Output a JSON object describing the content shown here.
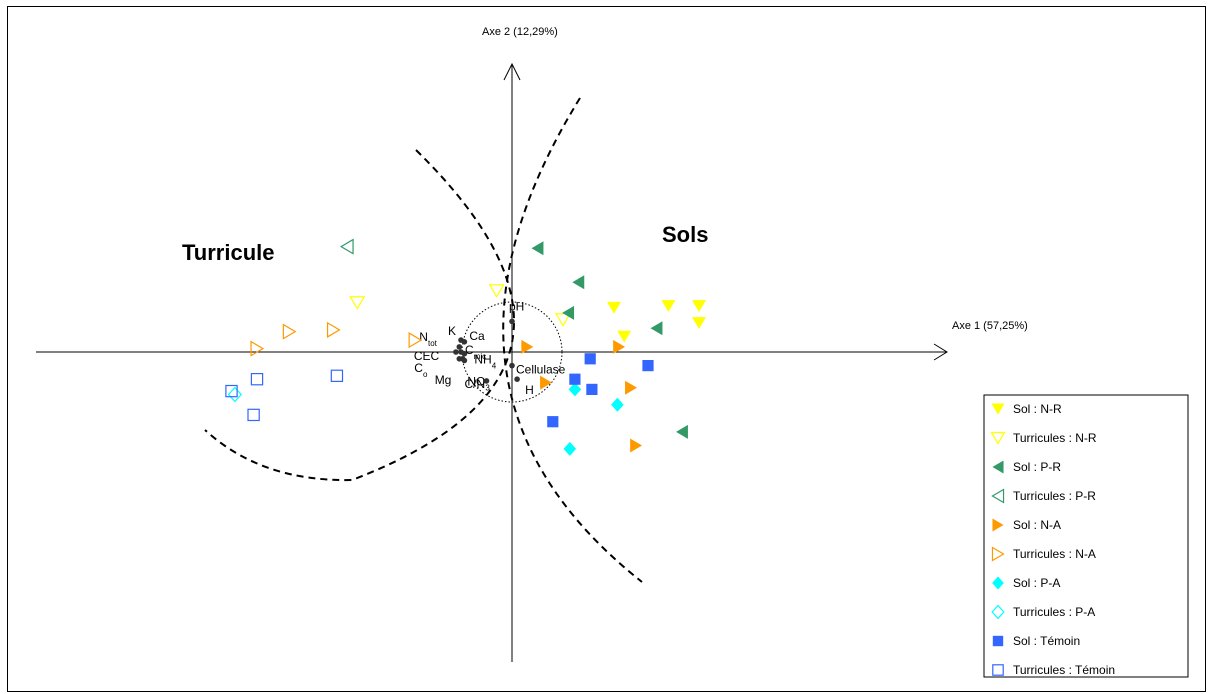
{
  "chart_data": {
    "type": "scatter",
    "xlabel": "Axe 1 (57,25%)",
    "ylabel": "Axe 2 (12,29%)",
    "xlim": [
      -3.0,
      2.75
    ],
    "ylim": [
      -1.9,
      1.65
    ],
    "groups": [
      {
        "label": "Turricule"
      },
      {
        "label": "Sols"
      }
    ],
    "variables": [
      {
        "name": "pH",
        "x": 0.0,
        "y": 0.18
      },
      {
        "name": "K",
        "x": -0.3,
        "y": 0.07
      },
      {
        "name": "Ca",
        "x": -0.28,
        "y": 0.06
      },
      {
        "name": "Ntot",
        "base": "N",
        "sub": "tot",
        "x": -0.31,
        "y": 0.03
      },
      {
        "name": "Cmic",
        "base": "C",
        "sub": "mic",
        "x": -0.3,
        "y": 0.0
      },
      {
        "name": "CEC",
        "x": -0.33,
        "y": 0.0
      },
      {
        "name": "NH4",
        "base": "NH",
        "sub": "4",
        "x": -0.28,
        "y": -0.01
      },
      {
        "name": "Co",
        "base": "C",
        "sub": "o",
        "x": -0.31,
        "y": -0.04
      },
      {
        "name": "Mg",
        "x": -0.29,
        "y": -0.04
      },
      {
        "name": "NO3",
        "base": "NO",
        "sub": "3",
        "x": -0.28,
        "y": -0.05
      },
      {
        "name": "Cellulase",
        "x": 0.0,
        "y": -0.08
      },
      {
        "name": "C/N",
        "x": -0.15,
        "y": -0.17
      },
      {
        "name": "H",
        "x": 0.03,
        "y": -0.16
      }
    ],
    "series": [
      {
        "name": "Sol : N-R",
        "marker": "triangle-down",
        "filled": true,
        "color": "#ffff00",
        "points": [
          [
            0.6,
            0.26
          ],
          [
            0.92,
            0.27
          ],
          [
            1.1,
            0.27
          ],
          [
            0.66,
            0.09
          ],
          [
            1.1,
            0.17
          ]
        ]
      },
      {
        "name": "Turricules : N-R",
        "marker": "triangle-down",
        "filled": false,
        "color": "#ffff00",
        "points": [
          [
            -0.09,
            0.36
          ],
          [
            -0.91,
            0.29
          ],
          [
            0.3,
            0.19
          ]
        ]
      },
      {
        "name": "Sol : P-R",
        "marker": "triangle-left",
        "filled": true,
        "color": "#339966",
        "points": [
          [
            0.15,
            0.61
          ],
          [
            0.39,
            0.41
          ],
          [
            0.33,
            0.23
          ],
          [
            0.85,
            0.14
          ],
          [
            1.0,
            -0.47
          ]
        ]
      },
      {
        "name": "Turricules : P-R",
        "marker": "triangle-left",
        "filled": false,
        "color": "#339966",
        "points": [
          [
            -0.97,
            0.62
          ]
        ]
      },
      {
        "name": "Sol : N-A",
        "marker": "triangle-right",
        "filled": true,
        "color": "#ff9900",
        "points": [
          [
            0.09,
            0.03
          ],
          [
            0.63,
            0.03
          ],
          [
            0.2,
            -0.18
          ],
          [
            0.7,
            -0.21
          ],
          [
            0.73,
            -0.55
          ]
        ]
      },
      {
        "name": "Turricules : N-A",
        "marker": "triangle-right",
        "filled": false,
        "color": "#ff9900",
        "points": [
          [
            -1.31,
            0.12
          ],
          [
            -1.05,
            0.13
          ],
          [
            -0.57,
            0.07
          ],
          [
            -1.5,
            0.02
          ]
        ]
      },
      {
        "name": "Sol : P-A",
        "marker": "diamond",
        "filled": true,
        "color": "#00ffff",
        "points": [
          [
            0.37,
            -0.22
          ],
          [
            0.62,
            -0.31
          ],
          [
            0.34,
            -0.57
          ]
        ]
      },
      {
        "name": "Turricules : P-A",
        "marker": "diamond",
        "filled": false,
        "color": "#00ffff",
        "points": [
          [
            -1.63,
            -0.25
          ]
        ]
      },
      {
        "name": "Sol : Témoin",
        "marker": "square",
        "filled": true,
        "color": "#3366ff",
        "points": [
          [
            0.46,
            -0.04
          ],
          [
            0.8,
            -0.08
          ],
          [
            0.37,
            -0.16
          ],
          [
            0.47,
            -0.22
          ],
          [
            0.24,
            -0.41
          ]
        ]
      },
      {
        "name": "Turricules : Témoin",
        "marker": "square",
        "filled": false,
        "color": "#3366ff",
        "points": [
          [
            -1.03,
            -0.14
          ],
          [
            -1.5,
            -0.16
          ],
          [
            -1.65,
            -0.23
          ],
          [
            -1.52,
            -0.37
          ]
        ]
      }
    ],
    "legend_position": "right"
  }
}
